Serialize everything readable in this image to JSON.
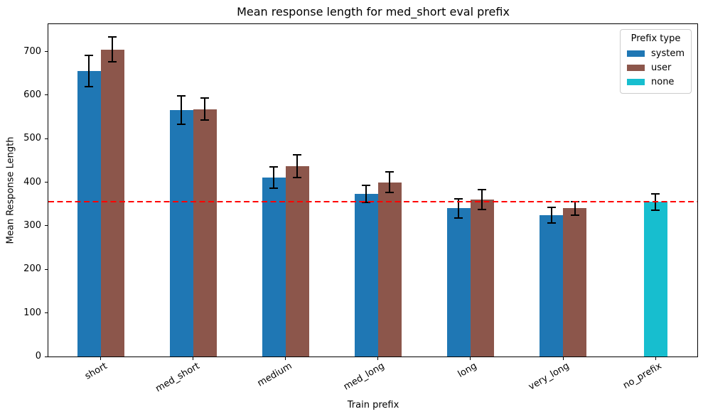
{
  "chart_data": {
    "type": "bar",
    "title": "Mean response length for med_short eval prefix",
    "xlabel": "Train prefix",
    "ylabel": "Mean Response Length",
    "categories": [
      "short",
      "med_short",
      "medium",
      "med_long",
      "long",
      "very_long",
      "no_prefix"
    ],
    "series": [
      {
        "name": "system",
        "color": "#1f77b4",
        "values": [
          655,
          566,
          411,
          373,
          340,
          324,
          null
        ],
        "errors": [
          36,
          33,
          25,
          20,
          22,
          18,
          null
        ]
      },
      {
        "name": "user",
        "color": "#8c564b",
        "values": [
          705,
          568,
          437,
          400,
          360,
          340,
          null
        ],
        "errors": [
          28,
          25,
          26,
          24,
          23,
          16,
          null
        ]
      },
      {
        "name": "none",
        "color": "#17becf",
        "values": [
          null,
          null,
          null,
          null,
          null,
          null,
          355
        ],
        "errors": [
          null,
          null,
          null,
          null,
          null,
          null,
          19
        ]
      }
    ],
    "yticks": [
      0,
      100,
      200,
      300,
      400,
      500,
      600,
      700
    ],
    "ylim": [
      0,
      763
    ],
    "reference_line": {
      "y": 355,
      "color": "#ff0000",
      "style": "dashed"
    },
    "legend": {
      "title": "Prefix type",
      "position": "upper right"
    },
    "grid": false
  }
}
